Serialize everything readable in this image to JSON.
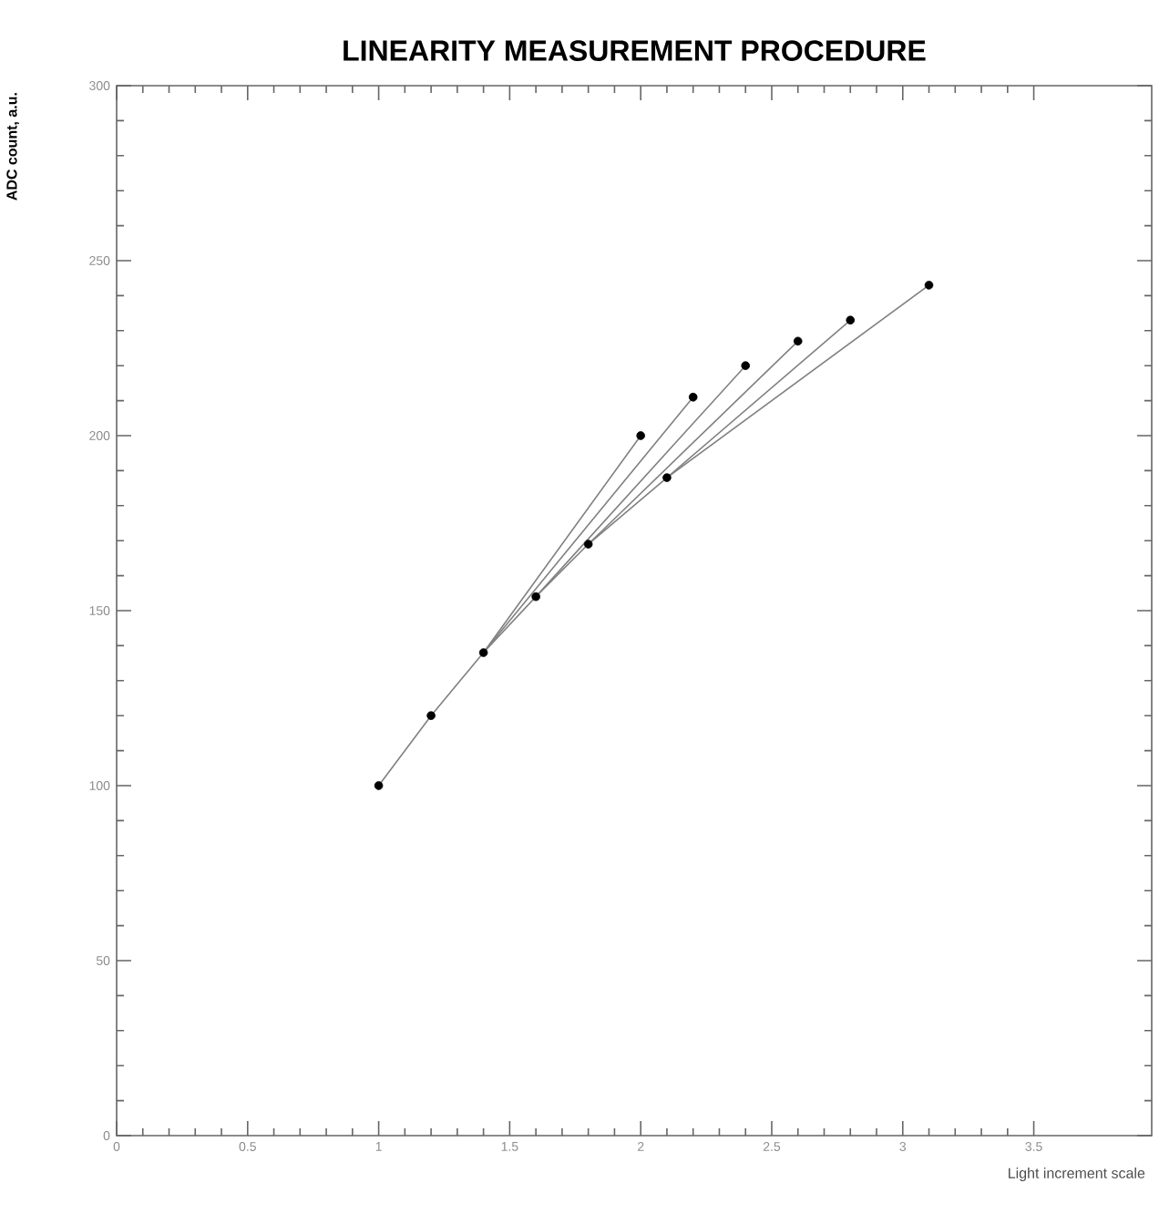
{
  "chart_data": {
    "type": "line",
    "title": "LINEARITY MEASUREMENT PROCEDURE",
    "xlabel": "Light increment scale",
    "ylabel": "ADC count, a.u.",
    "xlim": [
      0,
      3.95
    ],
    "xticks": [
      0,
      0.5,
      1,
      1.5,
      2,
      2.5,
      3,
      3.5
    ],
    "ylim": [
      0,
      300
    ],
    "yticks": [
      0,
      50,
      100,
      150,
      200,
      250,
      300
    ],
    "grid": false,
    "marker": "none",
    "line_style": "solid",
    "series": [
      {
        "color": "#808080",
        "x": [
          1,
          1.2,
          1.4,
          2.0
        ],
        "values": [
          100,
          120,
          138,
          200
        ]
      },
      {
        "color": "#808080",
        "x": [
          1.4,
          2.2
        ],
        "values": [
          138,
          211
        ]
      },
      {
        "color": "#808080",
        "x": [
          1.4,
          1.6,
          2.4
        ],
        "values": [
          138,
          154,
          220
        ]
      },
      {
        "color": "#808080",
        "x": [
          1.6,
          1.8,
          2.6
        ],
        "values": [
          154,
          169,
          227
        ]
      },
      {
        "color": "#808080",
        "x": [
          1.8,
          2.1,
          2.8
        ],
        "values": [
          169,
          188,
          233
        ]
      },
      {
        "color": "#808080",
        "x": [
          2.1,
          3.1
        ],
        "values": [
          188,
          243
        ]
      },
      {
        "type": "scatter",
        "marker": "circle",
        "color": "#000000",
        "x": [
          1,
          1.2,
          1.4,
          1.6,
          1.8,
          2.0,
          2.1,
          2.2,
          2.4,
          2.6,
          2.8,
          3.1
        ],
        "values": [
          100,
          120,
          138,
          154,
          169,
          200,
          188,
          211,
          220,
          227,
          233,
          243
        ]
      }
    ]
  }
}
